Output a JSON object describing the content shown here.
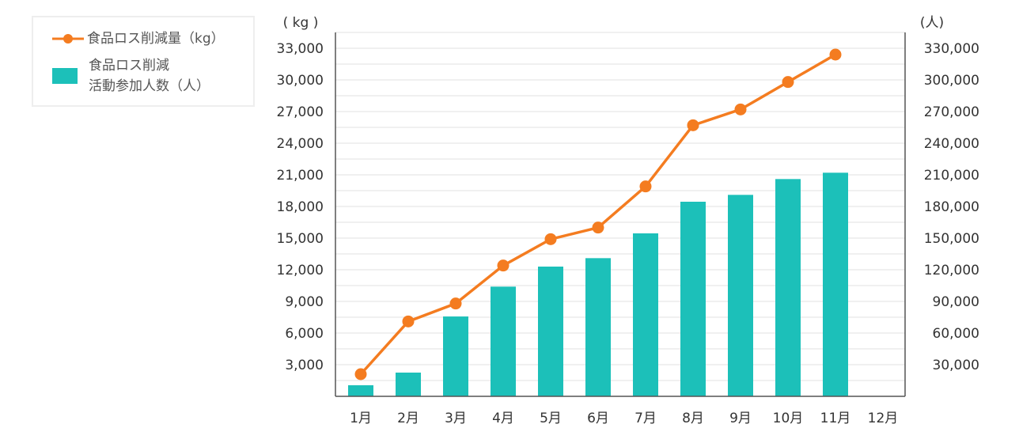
{
  "chart_data": {
    "type": "bar+line",
    "categories": [
      "1月",
      "2月",
      "3月",
      "4月",
      "5月",
      "6月",
      "7月",
      "8月",
      "9月",
      "10月",
      "11月",
      "12月"
    ],
    "series": [
      {
        "name": "食品ロス削減量（kg）",
        "type": "line",
        "axis": "left",
        "color": "#f47c20",
        "values": [
          2100,
          7100,
          8800,
          12400,
          14900,
          16000,
          19900,
          25700,
          27200,
          29800,
          32400,
          null
        ]
      },
      {
        "name": "食品ロス削減活動参加人数（人）",
        "name_lines": [
          "食品ロス削減",
          "活動参加人数（人）"
        ],
        "type": "bar",
        "axis": "right",
        "color": "#1cc0b9",
        "values": [
          10500,
          22500,
          75700,
          104000,
          123000,
          131000,
          154500,
          184500,
          191000,
          206000,
          212000,
          null
        ]
      }
    ],
    "left_axis": {
      "label": "( kg )",
      "ylim": [
        0,
        34500
      ],
      "ticks": [
        3000,
        6000,
        9000,
        12000,
        15000,
        18000,
        21000,
        24000,
        27000,
        30000,
        33000
      ],
      "tick_labels": [
        "3,000",
        "6,000",
        "9,000",
        "12,000",
        "15,000",
        "18,000",
        "21,000",
        "24,000",
        "27,000",
        "30,000",
        "33,000"
      ]
    },
    "right_axis": {
      "label": "(人)",
      "ylim": [
        0,
        345000
      ],
      "ticks": [
        30000,
        60000,
        90000,
        120000,
        150000,
        180000,
        210000,
        240000,
        270000,
        300000,
        330000
      ],
      "tick_labels": [
        "30,000",
        "60,000",
        "90,000",
        "120,000",
        "150,000",
        "180,000",
        "210,000",
        "240,000",
        "270,000",
        "300,000",
        "330,000"
      ]
    },
    "grid": true,
    "legend_position": "top-left"
  }
}
